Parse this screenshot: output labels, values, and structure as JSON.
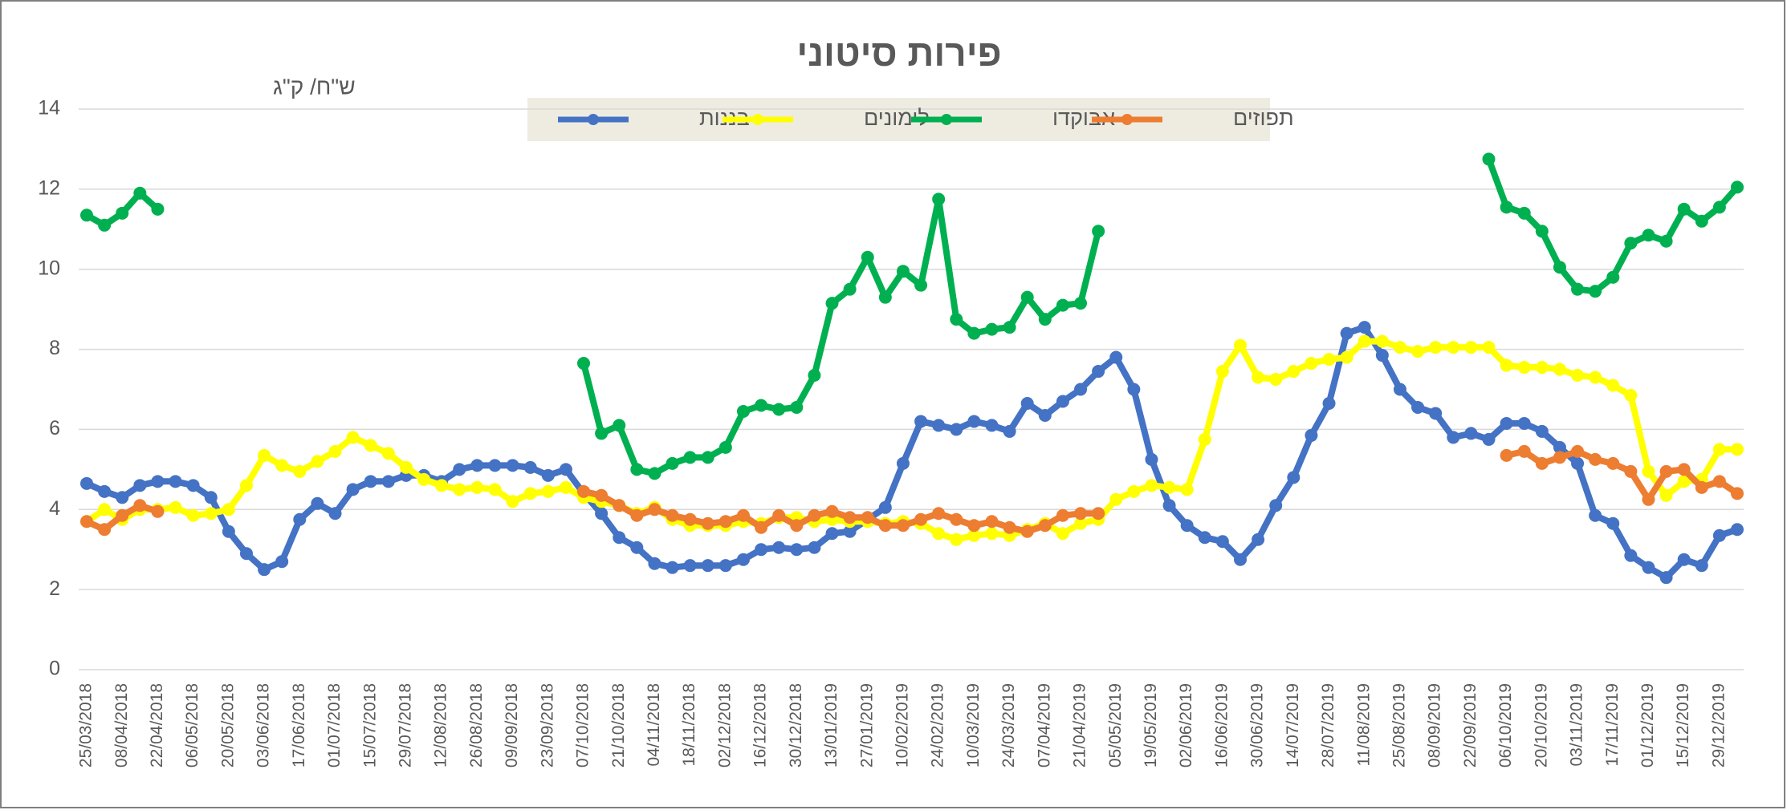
{
  "chart_data": {
    "type": "line",
    "title": "פירות סיטוני",
    "y_label": "ש\"ח/ ק\"ג",
    "categories": [
      "25/03/2018",
      null,
      "08/04/2018",
      null,
      "22/04/2018",
      null,
      "06/05/2018",
      null,
      "20/05/2018",
      null,
      "03/06/2018",
      null,
      "17/06/2018",
      null,
      "01/07/2018",
      null,
      "15/07/2018",
      null,
      "29/07/2018",
      null,
      "12/08/2018",
      null,
      "26/08/2018",
      null,
      "09/09/2018",
      null,
      "23/09/2018",
      null,
      "07/10/2018",
      null,
      "21/10/2018",
      null,
      "04/11/2018",
      null,
      "18/11/2018",
      null,
      "02/12/2018",
      null,
      "16/12/2018",
      null,
      "30/12/2018",
      null,
      "13/01/2019",
      null,
      "27/01/2019",
      null,
      "10/02/2019",
      null,
      "24/02/2019",
      null,
      "10/03/2019",
      null,
      "24/03/2019",
      null,
      "07/04/2019",
      null,
      "21/04/2019",
      null,
      "05/05/2019",
      null,
      "19/05/2019",
      null,
      "02/06/2019",
      null,
      "16/06/2019",
      null,
      "30/06/2019",
      null,
      "14/07/2019",
      null,
      "28/07/2019",
      null,
      "11/08/2019",
      null,
      "25/08/2019",
      null,
      "08/09/2019",
      null,
      "22/09/2019",
      null,
      "06/10/2019",
      null,
      "20/10/2019",
      null,
      "03/11/2019",
      null,
      "17/11/2019",
      null,
      "01/12/2019",
      null,
      "15/12/2019",
      null,
      "29/12/2019",
      null
    ],
    "series": [
      {
        "name": "בננות",
        "color": "#4472c4",
        "values": [
          4.65,
          4.45,
          4.3,
          4.6,
          4.7,
          4.7,
          4.6,
          4.3,
          3.45,
          2.9,
          2.5,
          2.7,
          3.75,
          4.15,
          3.9,
          4.5,
          4.7,
          4.7,
          4.85,
          4.85,
          4.7,
          5.0,
          5.1,
          5.1,
          5.1,
          5.05,
          4.85,
          5.0,
          4.4,
          3.9,
          3.3,
          3.05,
          2.65,
          2.55,
          2.6,
          2.6,
          2.6,
          2.75,
          3.0,
          3.05,
          3.0,
          3.05,
          3.4,
          3.45,
          3.75,
          4.05,
          5.15,
          6.2,
          6.1,
          6.0,
          6.2,
          6.1,
          5.95,
          6.65,
          6.35,
          6.7,
          7.0,
          7.45,
          7.8,
          7.0,
          5.25,
          4.1,
          3.6,
          3.3,
          3.2,
          2.75,
          3.25,
          4.1,
          4.8,
          5.85,
          6.65,
          8.4,
          8.55,
          7.85,
          7.0,
          6.55,
          6.4,
          5.8,
          5.9,
          5.75,
          6.15,
          6.15,
          5.95,
          5.55,
          5.15,
          3.85,
          3.65,
          2.85,
          2.55,
          2.3,
          2.75,
          2.6,
          3.35,
          3.5
        ]
      },
      {
        "name": "לימונים",
        "color": "#ffff00",
        "values": [
          3.7,
          4.0,
          3.75,
          4.0,
          4.0,
          4.05,
          3.85,
          3.9,
          4.0,
          4.6,
          5.35,
          5.1,
          4.95,
          5.2,
          5.45,
          5.8,
          5.6,
          5.4,
          5.05,
          4.75,
          4.6,
          4.5,
          4.55,
          4.5,
          4.2,
          4.4,
          4.45,
          4.55,
          4.3,
          4.2,
          4.1,
          3.9,
          4.05,
          3.75,
          3.6,
          3.6,
          3.6,
          3.7,
          3.65,
          3.8,
          3.8,
          3.7,
          3.75,
          3.7,
          3.7,
          3.65,
          3.7,
          3.65,
          3.4,
          3.25,
          3.35,
          3.4,
          3.35,
          3.5,
          3.65,
          3.4,
          3.65,
          3.75,
          4.25,
          4.45,
          4.6,
          4.55,
          4.5,
          5.75,
          7.45,
          8.1,
          7.3,
          7.25,
          7.45,
          7.65,
          7.75,
          7.8,
          8.2,
          8.2,
          8.05,
          7.95,
          8.05,
          8.05,
          8.05,
          8.05,
          7.6,
          7.55,
          7.55,
          7.5,
          7.35,
          7.3,
          7.1,
          6.85,
          4.95,
          4.35,
          4.7,
          4.75,
          5.5,
          5.5
        ]
      },
      {
        "name": "אבוקדו",
        "color": "#00b050",
        "values": [
          11.35,
          11.1,
          11.4,
          11.9,
          11.5,
          null,
          null,
          null,
          null,
          null,
          null,
          null,
          null,
          null,
          null,
          null,
          null,
          null,
          null,
          null,
          null,
          null,
          null,
          null,
          null,
          null,
          null,
          null,
          7.65,
          5.9,
          6.1,
          5.0,
          4.9,
          5.15,
          5.3,
          5.3,
          5.55,
          6.45,
          6.6,
          6.5,
          6.55,
          7.35,
          9.15,
          9.5,
          10.3,
          9.3,
          9.95,
          9.6,
          11.75,
          8.75,
          8.4,
          8.5,
          8.55,
          9.3,
          8.75,
          9.1,
          9.15,
          10.95,
          null,
          null,
          null,
          null,
          null,
          null,
          null,
          null,
          null,
          null,
          null,
          null,
          null,
          null,
          null,
          null,
          null,
          null,
          null,
          null,
          null,
          12.75,
          11.55,
          11.4,
          10.95,
          10.05,
          9.5,
          9.45,
          9.8,
          10.65,
          10.85,
          10.7,
          11.5,
          11.2,
          11.55,
          12.05
        ]
      },
      {
        "name": "תפוזים",
        "color": "#ed7d31",
        "values": [
          3.7,
          3.5,
          3.85,
          4.1,
          3.95,
          null,
          null,
          null,
          null,
          null,
          null,
          null,
          null,
          null,
          null,
          null,
          null,
          null,
          null,
          null,
          null,
          null,
          null,
          null,
          null,
          null,
          null,
          null,
          4.45,
          4.35,
          4.1,
          3.85,
          4.0,
          3.85,
          3.75,
          3.65,
          3.7,
          3.85,
          3.55,
          3.85,
          3.6,
          3.85,
          3.95,
          3.8,
          3.8,
          3.6,
          3.6,
          3.75,
          3.9,
          3.75,
          3.6,
          3.7,
          3.55,
          3.45,
          3.6,
          3.85,
          3.9,
          3.9,
          null,
          null,
          null,
          null,
          null,
          null,
          null,
          null,
          null,
          null,
          null,
          null,
          null,
          null,
          null,
          null,
          null,
          null,
          null,
          null,
          null,
          null,
          5.35,
          5.45,
          5.15,
          5.3,
          5.45,
          5.25,
          5.15,
          4.95,
          4.25,
          4.95,
          5.0,
          4.55,
          4.7,
          4.4
        ]
      }
    ],
    "ylim": [
      0,
      14
    ],
    "yticks": [
      0,
      2,
      4,
      6,
      8,
      10,
      12,
      14
    ],
    "grid": true,
    "legend": "top"
  }
}
